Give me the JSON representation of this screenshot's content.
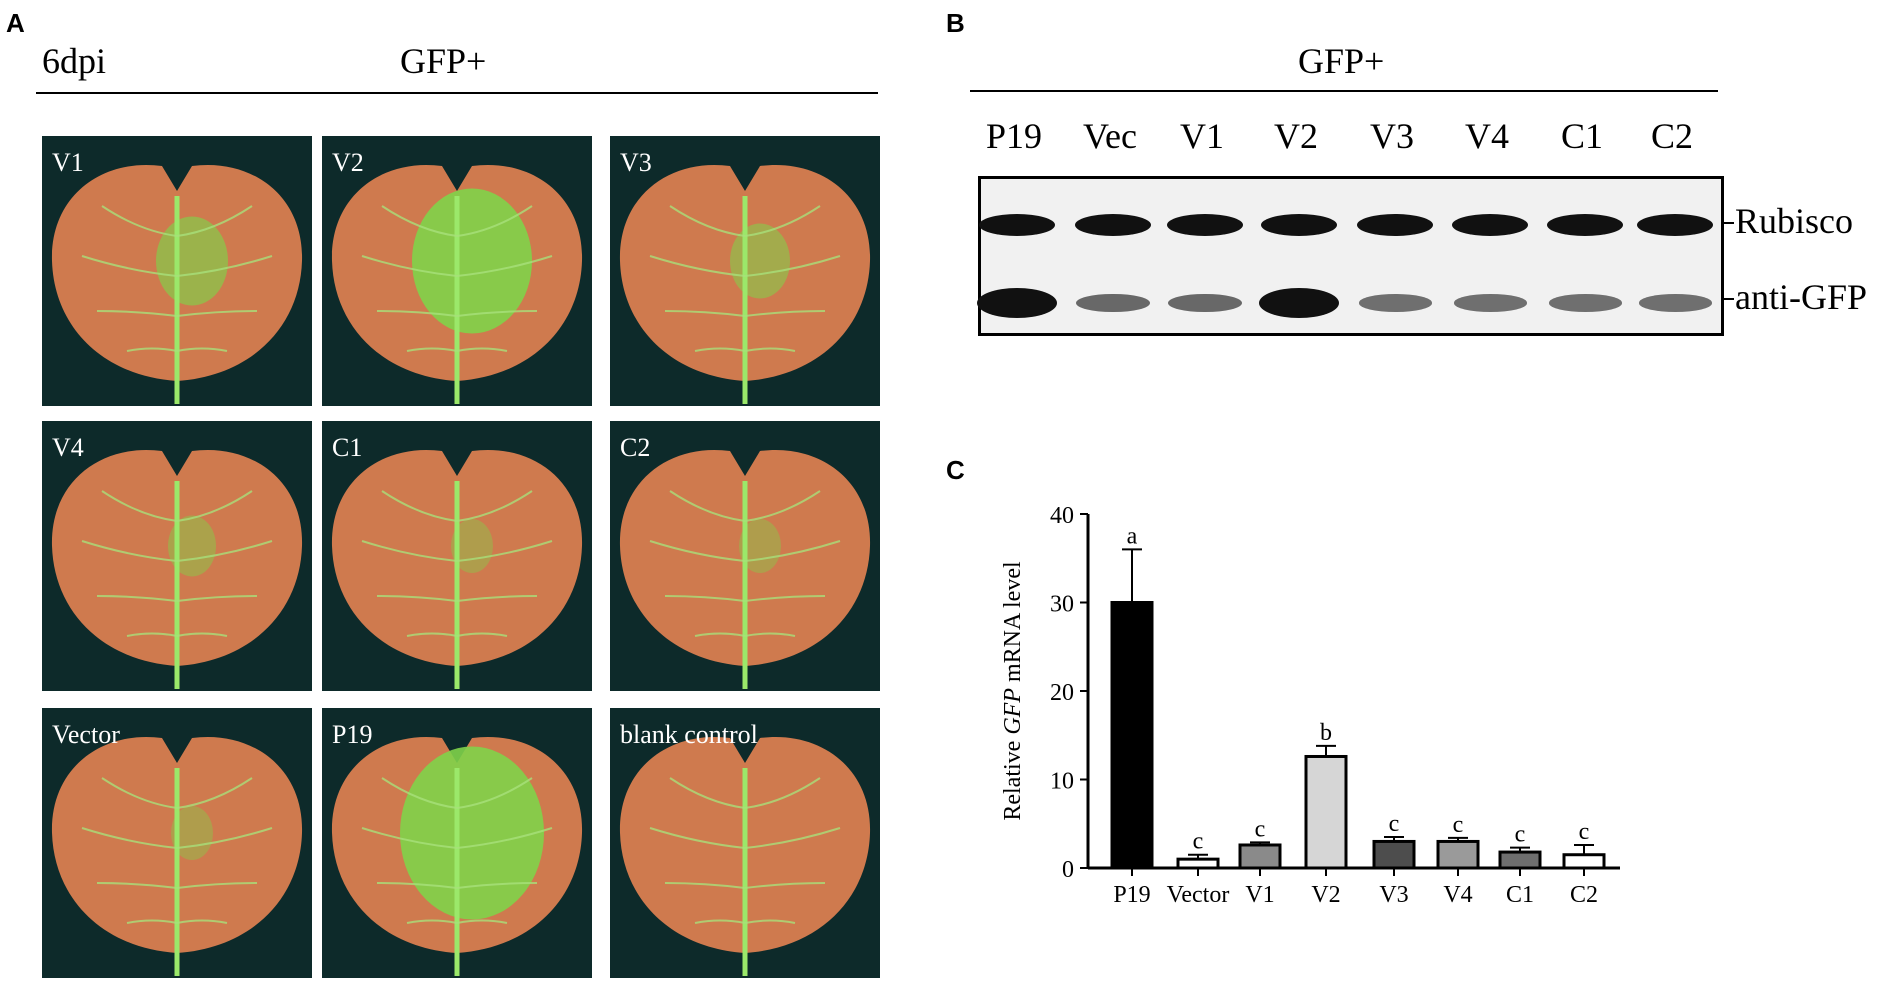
{
  "panel_a": {
    "letter": "A",
    "timepoint": "6dpi",
    "header": "GFP+",
    "leaves": [
      {
        "label": "V1",
        "green_patch": 0.35
      },
      {
        "label": "V2",
        "green_patch": 0.75
      },
      {
        "label": "V3",
        "green_patch": 0.25
      },
      {
        "label": "V4",
        "green_patch": 0.15
      },
      {
        "label": "C1",
        "green_patch": 0.1
      },
      {
        "label": "C2",
        "green_patch": 0.1
      },
      {
        "label": "Vector",
        "green_patch": 0.1
      },
      {
        "label": "P19",
        "green_patch": 0.95
      },
      {
        "label": "blank control",
        "green_patch": 0.0
      }
    ]
  },
  "panel_b": {
    "letter": "B",
    "header": "GFP+",
    "lanes": [
      "P19",
      "Vec",
      "V1",
      "V2",
      "V3",
      "V4",
      "C1",
      "C2"
    ],
    "markers": [
      "Rubisco",
      "anti-GFP"
    ],
    "rubisco_intensity": [
      1,
      1,
      1,
      1,
      1,
      1,
      1,
      1
    ],
    "gfp_intensity": [
      1.0,
      0.35,
      0.35,
      1.0,
      0.3,
      0.3,
      0.3,
      0.3
    ]
  },
  "panel_c": {
    "letter": "C",
    "chart_data": {
      "type": "bar",
      "categories": [
        "P19",
        "Vector",
        "V1",
        "V2",
        "V3",
        "V4",
        "C1",
        "C2"
      ],
      "values": [
        30,
        1,
        2.6,
        12.6,
        3,
        3,
        1.8,
        1.5
      ],
      "errors": [
        6,
        0.5,
        0.3,
        1.2,
        0.5,
        0.4,
        0.5,
        1.1
      ],
      "letters": [
        "a",
        "c",
        "c",
        "b",
        "c",
        "c",
        "c",
        "c"
      ],
      "colors": [
        "#000000",
        "#ffffff",
        "#8a8a8a",
        "#d6d6d6",
        "#4d4d4d",
        "#9a9a9a",
        "#6e6e6e",
        "#ffffff"
      ],
      "ylabel_pre": "Relative ",
      "ylabel_italic": "GFP",
      "ylabel_post": " mRNA  level",
      "ylim": [
        0,
        40
      ],
      "yticks": [
        "0",
        "10",
        "20",
        "30",
        "40"
      ]
    }
  }
}
